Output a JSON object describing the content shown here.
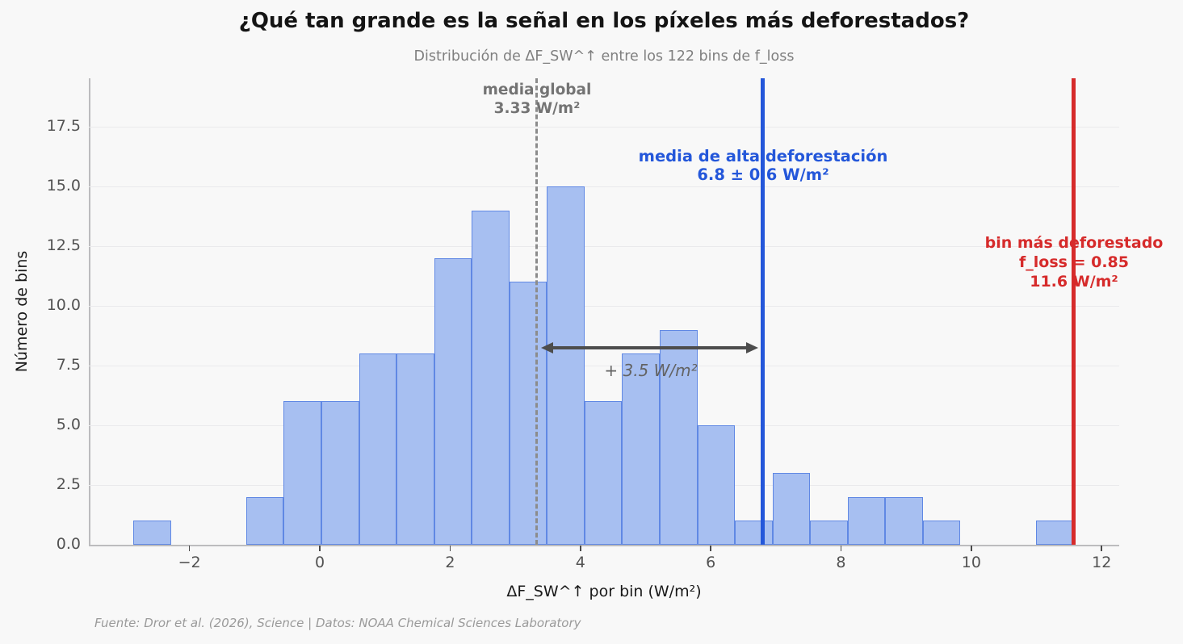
{
  "title": "¿Qué tan grande es la señal en los píxeles más deforestados?",
  "subtitle": "Distribución de ΔF_SW^↑ entre los 122 bins de f_loss",
  "footer": "Fuente: Dror et al. (2026), Science | Datos: NOAA Chemical Sciences Laboratory",
  "chart_data": {
    "type": "bar",
    "variant": "histogram",
    "title": "Distribución de ΔF_SW^↑ entre los 122 bins de f_loss",
    "xlabel": "ΔF_SW^↑ por bin (W/m²)",
    "ylabel": "Número de bins",
    "total_bins": 122,
    "histogram": {
      "bin_start": -2.86,
      "bin_width": 0.577,
      "counts": [
        1,
        0,
        0,
        2,
        6,
        6,
        8,
        8,
        12,
        14,
        11,
        15,
        6,
        8,
        9,
        5,
        1,
        3,
        1,
        2,
        2,
        1,
        0,
        0,
        1
      ]
    },
    "xlim": [
      -3.545,
      12.27
    ],
    "ylim": [
      0,
      19.53
    ],
    "xticks": [
      "−2",
      "0",
      "2",
      "4",
      "6",
      "8",
      "10",
      "12"
    ],
    "xtick_values": [
      -2,
      0,
      2,
      4,
      6,
      8,
      10,
      12
    ],
    "yticks": [
      "0.0",
      "2.5",
      "5.0",
      "7.5",
      "10.0",
      "12.5",
      "15.0",
      "17.5"
    ],
    "ytick_values": [
      0,
      2.5,
      5,
      7.5,
      10,
      12.5,
      15,
      17.5
    ],
    "grid": "horizontal",
    "legend": "none",
    "annotations": {
      "global_mean": {
        "x": 3.33,
        "line1": "media global",
        "line2": "3.33 W/m²",
        "style": "dashed"
      },
      "high_def_mean": {
        "x": 6.8,
        "line1": "media de alta deforestación",
        "line2": "6.8 ± 0.6 W/m²",
        "style": "solid"
      },
      "max_bin": {
        "x": 11.57,
        "line1": "bin más deforestado",
        "line2": "f_loss = 0.85",
        "line3": "11.6 W/m²",
        "style": "solid"
      },
      "difference_arrow": {
        "from_x": 3.39,
        "to_x": 6.73,
        "y": 8.25,
        "label": "+ 3.5 W/m²"
      }
    },
    "colors": {
      "background": "#f8f8f8",
      "bar_fill": "#a7bff1",
      "bar_edge": "#6088e4",
      "gridline": "#eaeaec",
      "spine": "#bcbcbe",
      "tick": "#4a4a4a",
      "tick_label": "#525252",
      "global_mean_line": "#8c8c8c",
      "global_mean_text": "#737373",
      "high_def": "#2457da",
      "max_bin": "#d62b2b",
      "arrow": "#4d4d4d",
      "arrow_text": "#636363",
      "footer_text": "#9a9a9a"
    }
  }
}
